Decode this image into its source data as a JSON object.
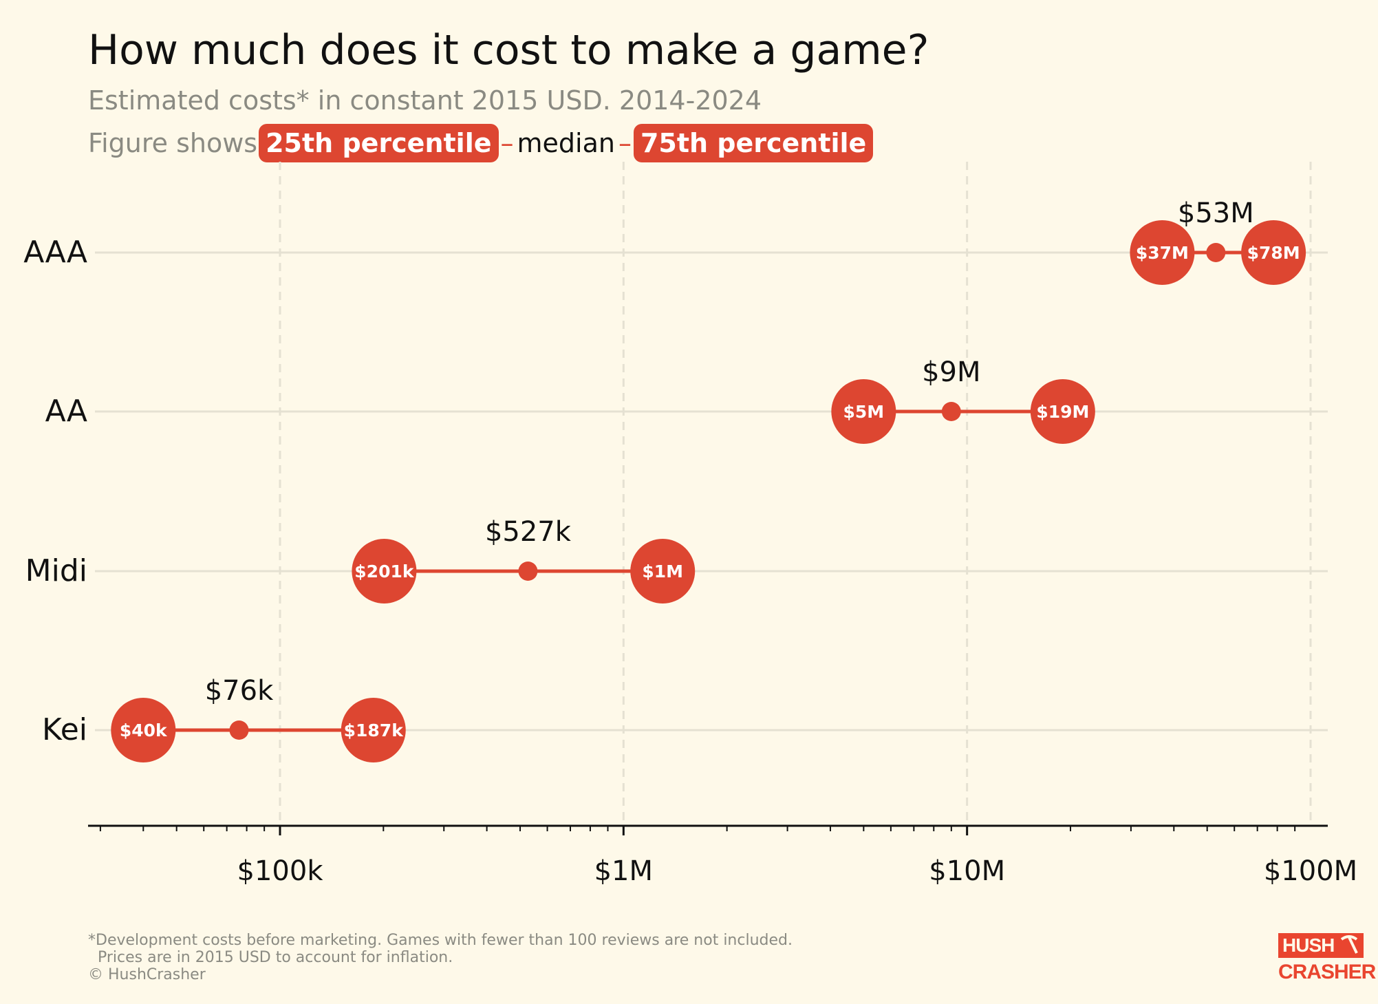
{
  "header": {
    "title": "How much does it cost to make a game?",
    "subtitle": "Estimated costs* in constant 2015 USD. 2014-2024",
    "legend_prefix": "Figure shows",
    "legend_p25": "25th percentile",
    "legend_sep": "–",
    "legend_median": "median",
    "legend_p75": "75th percentile"
  },
  "footer": {
    "note_line1": "*Development costs before marketing. Games with fewer than 100 reviews are not included.",
    "note_line2": "Prices are in 2015 USD to account for inflation.",
    "credit": "© HushCrasher"
  },
  "logo": {
    "line1": "HUSH",
    "line2": "CRASHER",
    "icon": "pickaxe-icon"
  },
  "colors": {
    "accent": "#dd4631",
    "background": "#fef9e9",
    "grid": "#e5e1d2",
    "text": "#111111",
    "muted": "#8a8a82"
  },
  "chart_data": {
    "type": "dumbbell",
    "x_scale": "log",
    "xlim": [
      30000,
      100000000
    ],
    "x_ticks": [
      {
        "value": 100000,
        "label": "$100k"
      },
      {
        "value": 1000000,
        "label": "$1M"
      },
      {
        "value": 10000000,
        "label": "$10M"
      },
      {
        "value": 100000000,
        "label": "$100M"
      }
    ],
    "categories": [
      "AAA",
      "AA",
      "Midi",
      "Kei"
    ],
    "series": [
      {
        "category": "AAA",
        "p25": 37000000,
        "median": 53000000,
        "p75": 78000000,
        "p25_label": "$37M",
        "median_label": "$53M",
        "p75_label": "$78M"
      },
      {
        "category": "AA",
        "p25": 5000000,
        "median": 9000000,
        "p75": 19000000,
        "p25_label": "$5M",
        "median_label": "$9M",
        "p75_label": "$19M"
      },
      {
        "category": "Midi",
        "p25": 201000,
        "median": 527000,
        "p75": 1300000,
        "p25_label": "$201k",
        "median_label": "$527k",
        "p75_label": "$1M"
      },
      {
        "category": "Kei",
        "p25": 40000,
        "median": 76000,
        "p75": 187000,
        "p25_label": "$40k",
        "median_label": "$76k",
        "p75_label": "$187k"
      }
    ],
    "grid": {
      "vertical": true,
      "horizontal": true
    }
  }
}
